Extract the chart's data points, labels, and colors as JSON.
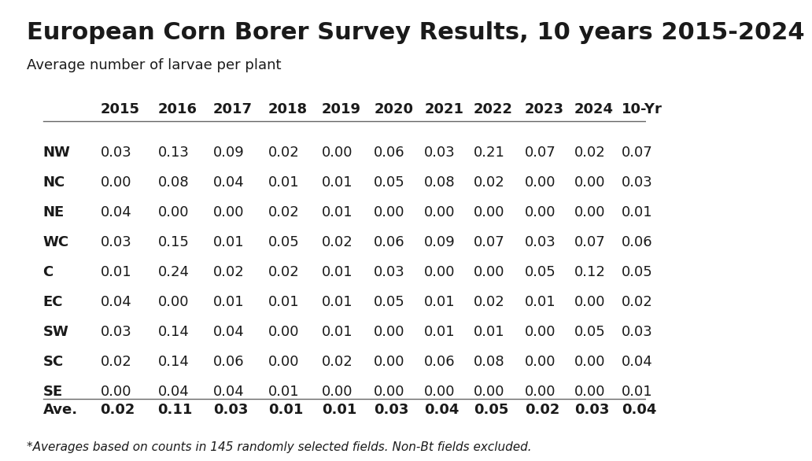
{
  "title": "European Corn Borer Survey Results, 10 years 2015-2024",
  "subtitle": "Average number of larvae per plant",
  "footnote": "*Averages based on counts in 145 randomly selected fields. Non-Bt fields excluded.",
  "col_headers": [
    "",
    "2015",
    "2016",
    "2017",
    "2018",
    "2019",
    "2020",
    "2021",
    "2022",
    "2023",
    "2024",
    "10-Yr"
  ],
  "row_labels": [
    "NW",
    "NC",
    "NE",
    "WC",
    "C",
    "EC",
    "SW",
    "SC",
    "SE"
  ],
  "avg_label": "Ave.",
  "table_data": [
    [
      "0.03",
      "0.13",
      "0.09",
      "0.02",
      "0.00",
      "0.06",
      "0.03",
      "0.21",
      "0.07",
      "0.02",
      "0.07"
    ],
    [
      "0.00",
      "0.08",
      "0.04",
      "0.01",
      "0.01",
      "0.05",
      "0.08",
      "0.02",
      "0.00",
      "0.00",
      "0.03"
    ],
    [
      "0.04",
      "0.00",
      "0.00",
      "0.02",
      "0.01",
      "0.00",
      "0.00",
      "0.00",
      "0.00",
      "0.00",
      "0.01"
    ],
    [
      "0.03",
      "0.15",
      "0.01",
      "0.05",
      "0.02",
      "0.06",
      "0.09",
      "0.07",
      "0.03",
      "0.07",
      "0.06"
    ],
    [
      "0.01",
      "0.24",
      "0.02",
      "0.02",
      "0.01",
      "0.03",
      "0.00",
      "0.00",
      "0.05",
      "0.12",
      "0.05"
    ],
    [
      "0.04",
      "0.00",
      "0.01",
      "0.01",
      "0.01",
      "0.05",
      "0.01",
      "0.02",
      "0.01",
      "0.00",
      "0.02"
    ],
    [
      "0.03",
      "0.14",
      "0.04",
      "0.00",
      "0.01",
      "0.00",
      "0.01",
      "0.01",
      "0.00",
      "0.05",
      "0.03"
    ],
    [
      "0.02",
      "0.14",
      "0.06",
      "0.00",
      "0.02",
      "0.00",
      "0.06",
      "0.08",
      "0.00",
      "0.00",
      "0.04"
    ],
    [
      "0.00",
      "0.04",
      "0.04",
      "0.01",
      "0.00",
      "0.00",
      "0.00",
      "0.00",
      "0.00",
      "0.00",
      "0.01"
    ]
  ],
  "avg_row": [
    "0.02",
    "0.11",
    "0.03",
    "0.01",
    "0.01",
    "0.03",
    "0.04",
    "0.05",
    "0.02",
    "0.03",
    "0.04"
  ],
  "bg_color": "#ffffff",
  "text_color": "#1a1a1a",
  "line_color": "#666666",
  "title_fontsize": 22,
  "subtitle_fontsize": 13,
  "header_fontsize": 13,
  "cell_fontsize": 13,
  "avg_fontsize": 13,
  "footnote_fontsize": 11
}
